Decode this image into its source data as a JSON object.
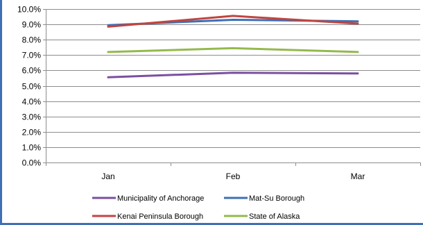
{
  "chart_data": {
    "type": "line",
    "categories": [
      "Jan",
      "Feb",
      "Mar"
    ],
    "y_tick_labels": [
      "0.0%",
      "1.0%",
      "2.0%",
      "3.0%",
      "4.0%",
      "5.0%",
      "6.0%",
      "7.0%",
      "8.0%",
      "9.0%",
      "10.0%"
    ],
    "ylim": [
      0,
      10
    ],
    "ystep": 1,
    "grid": true,
    "legend_position": "bottom",
    "series": [
      {
        "name": "Municipality of Anchorage",
        "values": [
          5.55,
          5.85,
          5.8
        ],
        "color": "#7b4fa0"
      },
      {
        "name": "Mat-Su Borough",
        "values": [
          8.95,
          9.3,
          9.2
        ],
        "color": "#3f6fb5"
      },
      {
        "name": "Kenai Peninsula Borough",
        "values": [
          8.85,
          9.55,
          9.05
        ],
        "color": "#c0453f"
      },
      {
        "name": "State of Alaska",
        "values": [
          7.2,
          7.45,
          7.2
        ],
        "color": "#94b94c"
      }
    ]
  }
}
